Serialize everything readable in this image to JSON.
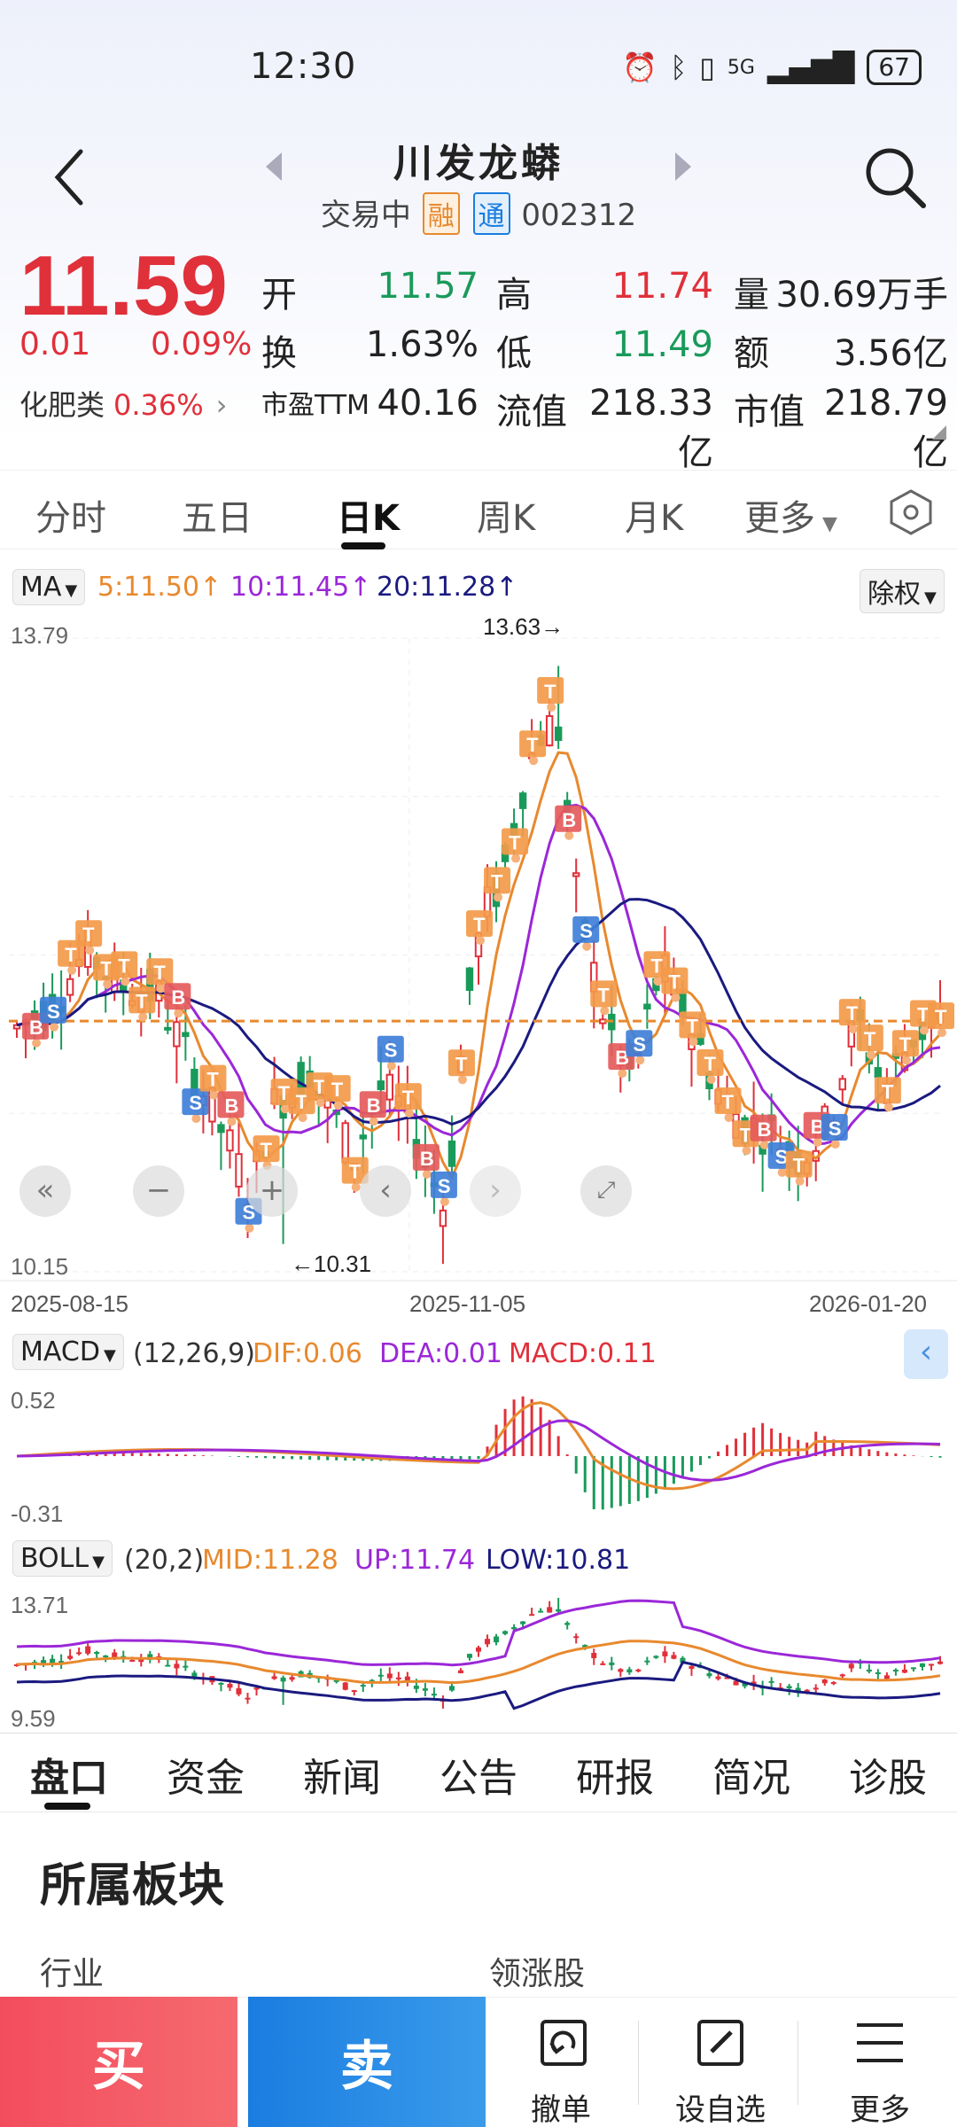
{
  "status": {
    "time": "12:30",
    "network": "5G",
    "battery": "67"
  },
  "header": {
    "title": "川发龙蟒",
    "status_text": "交易中",
    "tag_rong": "融",
    "tag_tong": "通",
    "code": "002312"
  },
  "quote": {
    "price": "11.59",
    "change": "0.01",
    "change_pct": "0.09%",
    "open_label": "开",
    "open": "11.57",
    "high_label": "高",
    "high": "11.74",
    "volume_label": "量",
    "volume": "30.69万手",
    "turnover_label": "换",
    "turnover": "1.63%",
    "low_label": "低",
    "low": "11.49",
    "amount_label": "额",
    "amount": "3.56亿",
    "pe_label": "市盈TTM",
    "pe": "40.16",
    "float_label": "流值",
    "float_cap": "218.33亿",
    "mcap_label": "市值",
    "mcap": "218.79亿",
    "sector": "化肥类",
    "sector_pct": "0.36%"
  },
  "period_tabs": [
    "分时",
    "五日",
    "日K",
    "周K",
    "月K",
    "更多"
  ],
  "ma": {
    "label": "MA",
    "ma5": "5:11.50↑",
    "ma10": "10:11.45↑",
    "ma20": "20:11.28↑",
    "adjust": "除权"
  },
  "kline": {
    "y_max_label": "13.79",
    "y_min_label": "10.15",
    "peak_label": "13.63→",
    "trough_label": "←10.31",
    "dates": [
      "2025-08-15",
      "2025-11-05",
      "2026-01-20"
    ],
    "ref_price": 11.59
  },
  "macd": {
    "label": "MACD",
    "params": "(12,26,9)",
    "dif": "DIF:0.06",
    "dea": "DEA:0.01",
    "macd": "MACD:0.11",
    "y_max": "0.52",
    "y_min": "-0.31"
  },
  "boll": {
    "label": "BOLL",
    "params": "(20,2)",
    "mid": "MID:11.28",
    "up": "UP:11.74",
    "low": "LOW:10.81",
    "y_max": "13.71",
    "y_min": "9.59"
  },
  "info_tabs": [
    "盘口",
    "资金",
    "新闻",
    "公告",
    "研报",
    "简况",
    "诊股"
  ],
  "section": {
    "title": "所属板块",
    "industry": "行业",
    "leader": "领涨股"
  },
  "bottom": {
    "buy": "买",
    "sell": "卖",
    "cancel": "撤单",
    "watch": "设自选",
    "more": "更多"
  },
  "colors": {
    "up": "#e0303a",
    "down": "#1a9a5a",
    "ma5": "#e8892e",
    "ma10": "#9b27d8",
    "ma20": "#1a1a80"
  }
}
